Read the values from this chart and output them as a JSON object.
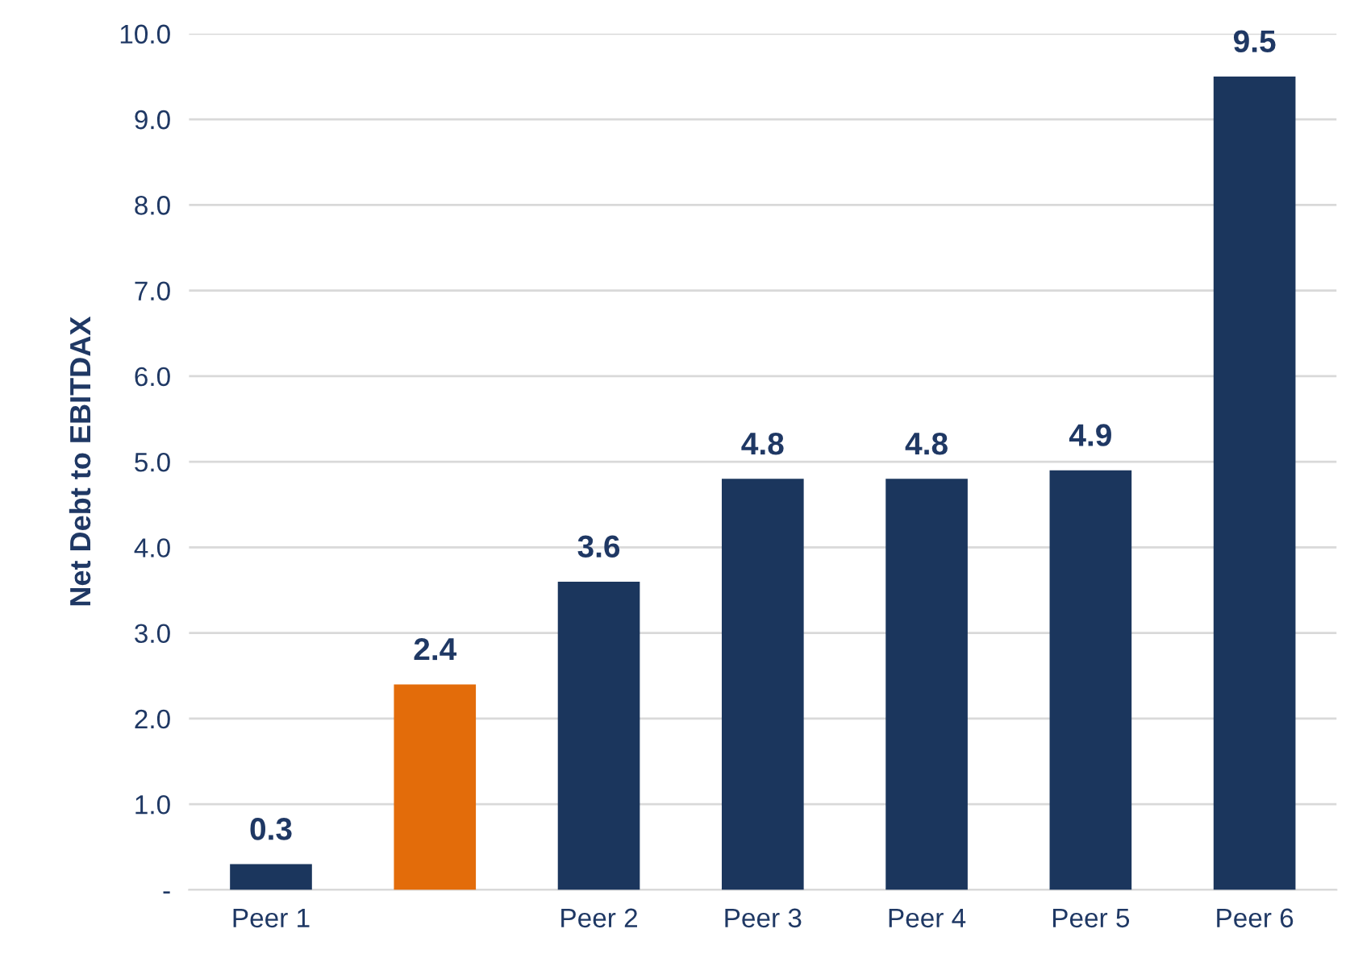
{
  "chart_data": {
    "type": "bar",
    "ylabel": "Net Debt to EBITDAX",
    "categories": [
      "Peer 1",
      null,
      "Peer 2",
      "Peer 3",
      "Peer 4",
      "Peer 5",
      "Peer 6"
    ],
    "values": [
      0.3,
      2.4,
      3.6,
      4.8,
      4.8,
      4.9,
      9.5
    ],
    "colors": [
      "#1b365d",
      "#e36c0a",
      "#1b365d",
      "#1b365d",
      "#1b365d",
      "#1b365d",
      "#1b365d"
    ],
    "data_labels": true,
    "ylim": [
      0,
      10
    ],
    "yticks": [
      {
        "value": 0,
        "label": "-"
      },
      {
        "value": 1,
        "label": "1.0"
      },
      {
        "value": 2,
        "label": "2.0"
      },
      {
        "value": 3,
        "label": "3.0"
      },
      {
        "value": 4,
        "label": "4.0"
      },
      {
        "value": 5,
        "label": "5.0"
      },
      {
        "value": 6,
        "label": "6.0"
      },
      {
        "value": 7,
        "label": "7.0"
      },
      {
        "value": 8,
        "label": "8.0"
      },
      {
        "value": 9,
        "label": "9.0"
      },
      {
        "value": 10,
        "label": "10.0"
      }
    ],
    "grid": "y"
  }
}
